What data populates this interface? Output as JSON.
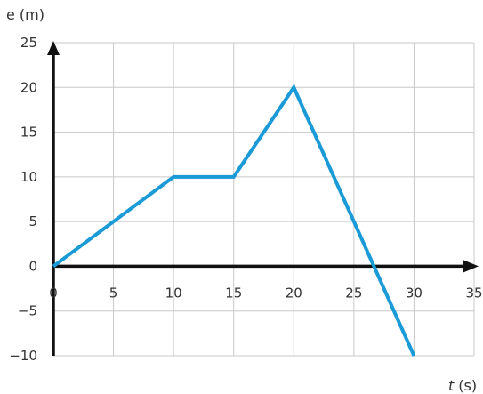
{
  "chart_data": {
    "type": "line",
    "xlabel_var": "t",
    "xlabel_unit": "(s)",
    "ylabel": "e (m)",
    "xlim": [
      0,
      35
    ],
    "ylim": [
      -10,
      25
    ],
    "grid": true,
    "x_ticks": [
      0,
      5,
      10,
      15,
      20,
      25,
      30,
      35
    ],
    "y_ticks": [
      -10,
      -5,
      0,
      5,
      10,
      15,
      20,
      25
    ],
    "x_tick_labels": [
      "0",
      "5",
      "10",
      "15",
      "20",
      "25",
      "30",
      "35"
    ],
    "y_tick_labels": [
      "−10",
      "−5",
      "0",
      "5",
      "10",
      "15",
      "20",
      "25"
    ],
    "series": [
      {
        "x": [
          0,
          10,
          15,
          20,
          30
        ],
        "y": [
          0,
          10,
          10,
          20,
          -10
        ],
        "color": "#1a9ad6"
      }
    ]
  }
}
